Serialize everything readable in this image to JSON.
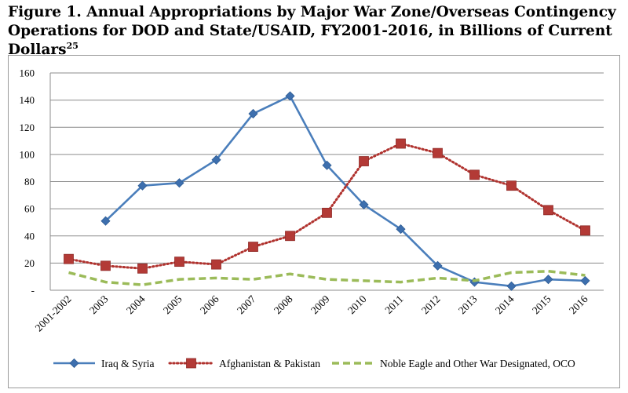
{
  "figure": {
    "title": "Figure 1. Annual Appropriations by Major War Zone/Overseas Contingency Operations for DOD and State/USAID, FY2001-2016, in Billions of Current Dollars",
    "footnote_marker": "25"
  },
  "chart_data": {
    "type": "line",
    "title": "Figure 1. Annual Appropriations by Major War Zone/Overseas Contingency Operations for DOD and State/USAID, FY2001-2016, in Billions of Current Dollars",
    "xlabel": "",
    "ylabel": "",
    "categories": [
      "2001-2002",
      "2003",
      "2004",
      "2005",
      "2006",
      "2007",
      "2008",
      "2009",
      "2010",
      "2011",
      "2012",
      "2013",
      "2014",
      "2015",
      "2016"
    ],
    "ylim": [
      0,
      160
    ],
    "yticks": [
      "-",
      "20",
      "40",
      "60",
      "80",
      "100",
      "120",
      "140",
      "160"
    ],
    "grid": "horizontal",
    "legend_position": "bottom",
    "series": [
      {
        "name": "Iraq & Syria",
        "color": "#4a7ebb",
        "style": "solid",
        "marker": "diamond",
        "values": [
          null,
          51,
          77,
          79,
          96,
          130,
          143,
          92,
          63,
          45,
          18,
          6,
          3,
          8,
          7
        ]
      },
      {
        "name": "Afghanistan & Pakistan",
        "color": "#b0322e",
        "style": "dotted",
        "marker": "square",
        "values": [
          23,
          18,
          16,
          21,
          19,
          32,
          40,
          57,
          95,
          108,
          101,
          85,
          77,
          59,
          44
        ]
      },
      {
        "name": "Noble Eagle and Other War Designated, OCO",
        "color": "#9bbb59",
        "style": "dashed",
        "marker": "none",
        "values": [
          13,
          6,
          4,
          8,
          9,
          8,
          12,
          8,
          7,
          6,
          9,
          7,
          13,
          14,
          11
        ]
      }
    ]
  }
}
